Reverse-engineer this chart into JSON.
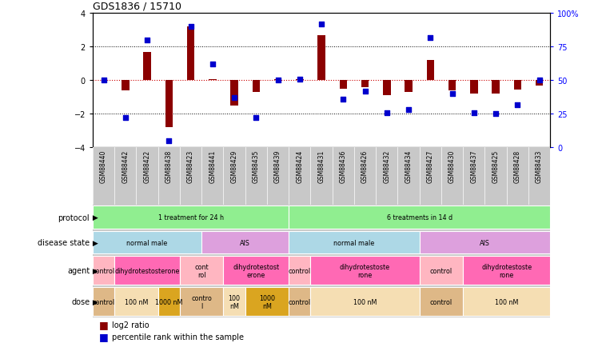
{
  "title": "GDS1836 / 15710",
  "samples": [
    "GSM88440",
    "GSM88442",
    "GSM88422",
    "GSM88438",
    "GSM88423",
    "GSM88441",
    "GSM88429",
    "GSM88435",
    "GSM88439",
    "GSM88424",
    "GSM88431",
    "GSM88436",
    "GSM88426",
    "GSM88432",
    "GSM88434",
    "GSM88427",
    "GSM88430",
    "GSM88437",
    "GSM88425",
    "GSM88428",
    "GSM88433"
  ],
  "log2_ratio": [
    0.0,
    -0.6,
    1.7,
    -2.8,
    3.2,
    0.05,
    -1.5,
    -0.7,
    0.05,
    0.05,
    2.7,
    -0.5,
    -0.4,
    -0.9,
    -0.7,
    1.2,
    -0.6,
    -0.8,
    -0.8,
    -0.55,
    -0.3
  ],
  "percentile_rank": [
    50,
    22,
    80,
    5,
    90,
    62,
    37,
    22,
    50,
    51,
    92,
    36,
    42,
    26,
    28,
    82,
    40,
    26,
    25,
    32,
    50
  ],
  "protocol_groups": [
    {
      "label": "1 treatment for 24 h",
      "start": 0,
      "end": 8,
      "color": "#90ee90"
    },
    {
      "label": "6 treatments in 14 d",
      "start": 9,
      "end": 20,
      "color": "#90ee90"
    }
  ],
  "disease_state_groups": [
    {
      "label": "normal male",
      "start": 0,
      "end": 4,
      "color": "#add8e6"
    },
    {
      "label": "AIS",
      "start": 5,
      "end": 8,
      "color": "#dda0dd"
    },
    {
      "label": "normal male",
      "start": 9,
      "end": 14,
      "color": "#add8e6"
    },
    {
      "label": "AIS",
      "start": 15,
      "end": 20,
      "color": "#dda0dd"
    }
  ],
  "agent_groups": [
    {
      "label": "control",
      "start": 0,
      "end": 0,
      "color": "#ffb6c1"
    },
    {
      "label": "dihydrotestosterone",
      "start": 1,
      "end": 3,
      "color": "#ff69b4"
    },
    {
      "label": "cont\nrol",
      "start": 4,
      "end": 5,
      "color": "#ffb6c1"
    },
    {
      "label": "dihydrotestost\nerone",
      "start": 6,
      "end": 8,
      "color": "#ff69b4"
    },
    {
      "label": "control",
      "start": 9,
      "end": 9,
      "color": "#ffb6c1"
    },
    {
      "label": "dihydrotestoste\nrone",
      "start": 10,
      "end": 14,
      "color": "#ff69b4"
    },
    {
      "label": "control",
      "start": 15,
      "end": 16,
      "color": "#ffb6c1"
    },
    {
      "label": "dihydrotestoste\nrone",
      "start": 17,
      "end": 20,
      "color": "#ff69b4"
    }
  ],
  "dose_groups": [
    {
      "label": "control",
      "start": 0,
      "end": 0,
      "color": "#deb887"
    },
    {
      "label": "100 nM",
      "start": 1,
      "end": 2,
      "color": "#f5deb3"
    },
    {
      "label": "1000 nM",
      "start": 3,
      "end": 3,
      "color": "#daa520"
    },
    {
      "label": "contro\nl",
      "start": 4,
      "end": 5,
      "color": "#deb887"
    },
    {
      "label": "100\nnM",
      "start": 6,
      "end": 6,
      "color": "#f5deb3"
    },
    {
      "label": "1000\nnM",
      "start": 7,
      "end": 8,
      "color": "#daa520"
    },
    {
      "label": "control",
      "start": 9,
      "end": 9,
      "color": "#deb887"
    },
    {
      "label": "100 nM",
      "start": 10,
      "end": 14,
      "color": "#f5deb3"
    },
    {
      "label": "control",
      "start": 15,
      "end": 16,
      "color": "#deb887"
    },
    {
      "label": "100 nM",
      "start": 17,
      "end": 20,
      "color": "#f5deb3"
    }
  ],
  "row_labels": [
    "protocol",
    "disease state",
    "agent",
    "dose"
  ],
  "bar_color": "#8b0000",
  "dot_color": "#0000cd",
  "ylim": [
    -4,
    4
  ],
  "y2lim": [
    0,
    100
  ],
  "yticks": [
    -4,
    -2,
    0,
    2,
    4
  ],
  "y2ticks": [
    0,
    25,
    50,
    75,
    100
  ],
  "dotted_lines": [
    -2,
    2
  ],
  "zero_line_color": "#cc0000",
  "bg_color": "#c8c8c8"
}
